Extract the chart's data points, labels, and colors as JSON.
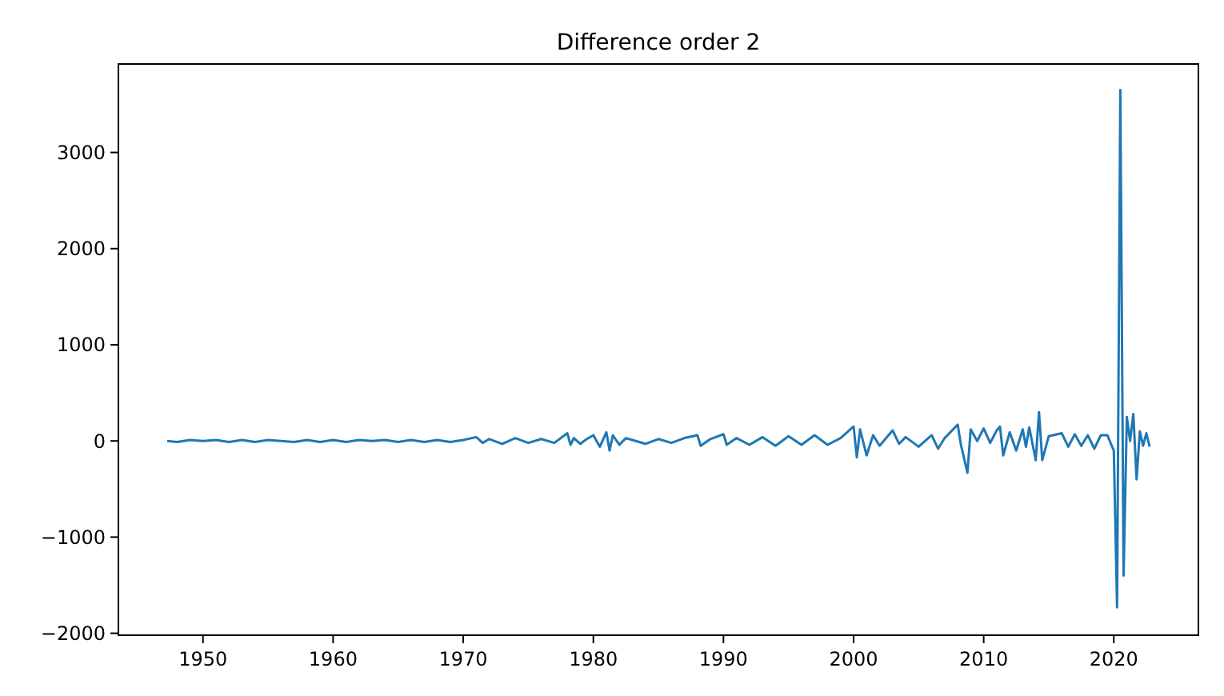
{
  "chart_data": {
    "type": "line",
    "title": "Difference order 2",
    "x": [
      1947.25,
      1948,
      1949,
      1950,
      1951,
      1952,
      1953,
      1954,
      1955,
      1956,
      1957,
      1958,
      1959,
      1960,
      1961,
      1962,
      1963,
      1964,
      1965,
      1966,
      1967,
      1968,
      1969,
      1970,
      1971,
      1971.5,
      1972,
      1973,
      1974,
      1975,
      1976,
      1977,
      1978,
      1978.25,
      1978.5,
      1979,
      1979.5,
      1980,
      1980.5,
      1981,
      1981.25,
      1981.5,
      1982,
      1982.5,
      1983,
      1984,
      1985,
      1986,
      1987,
      1988,
      1988.25,
      1989,
      1990,
      1990.25,
      1991,
      1992,
      1993,
      1994,
      1995,
      1996,
      1997,
      1998,
      1999,
      2000,
      2000.25,
      2000.5,
      2001,
      2001.5,
      2002,
      2003,
      2003.5,
      2004,
      2005,
      2006,
      2006.5,
      2007,
      2008,
      2008.25,
      2008.75,
      2009,
      2009.5,
      2010,
      2010.5,
      2011,
      2011.25,
      2011.5,
      2012,
      2012.5,
      2013,
      2013.25,
      2013.5,
      2014,
      2014.25,
      2014.5,
      2015,
      2016,
      2016.5,
      2017,
      2017.5,
      2018,
      2018.5,
      2019,
      2019.5,
      2020,
      2020.25,
      2020.5,
      2020.75,
      2021,
      2021.25,
      2021.5,
      2021.75,
      2022,
      2022.25,
      2022.5,
      2022.75
    ],
    "series": [
      {
        "color": "#1f77b4",
        "values": [
          0,
          -10,
          10,
          0,
          10,
          -10,
          10,
          -10,
          10,
          0,
          -10,
          10,
          -10,
          10,
          -10,
          10,
          0,
          10,
          -10,
          10,
          -10,
          10,
          -10,
          10,
          40,
          -20,
          20,
          -30,
          30,
          -20,
          20,
          -20,
          80,
          -40,
          30,
          -30,
          20,
          60,
          -60,
          90,
          -100,
          60,
          -40,
          30,
          10,
          -30,
          20,
          -20,
          30,
          60,
          -50,
          20,
          70,
          -40,
          30,
          -40,
          40,
          -50,
          50,
          -40,
          60,
          -40,
          30,
          150,
          -170,
          120,
          -150,
          60,
          -50,
          110,
          -30,
          40,
          -60,
          60,
          -80,
          30,
          170,
          -40,
          -330,
          120,
          0,
          130,
          -20,
          110,
          150,
          -150,
          90,
          -100,
          120,
          -60,
          140,
          -200,
          300,
          -200,
          50,
          80,
          -60,
          70,
          -50,
          60,
          -80,
          60,
          60,
          -100,
          -1730,
          3650,
          -1400,
          250,
          0,
          280,
          -400,
          100,
          -50,
          80,
          -60
        ]
      }
    ],
    "xlim": [
      1943.5,
      2026.5
    ],
    "ylim": [
      -2020,
      3920
    ],
    "xticks": [
      1950,
      1960,
      1970,
      1980,
      1990,
      2000,
      2010,
      2020
    ],
    "yticks": [
      -2000,
      -1000,
      0,
      1000,
      2000,
      3000
    ]
  }
}
